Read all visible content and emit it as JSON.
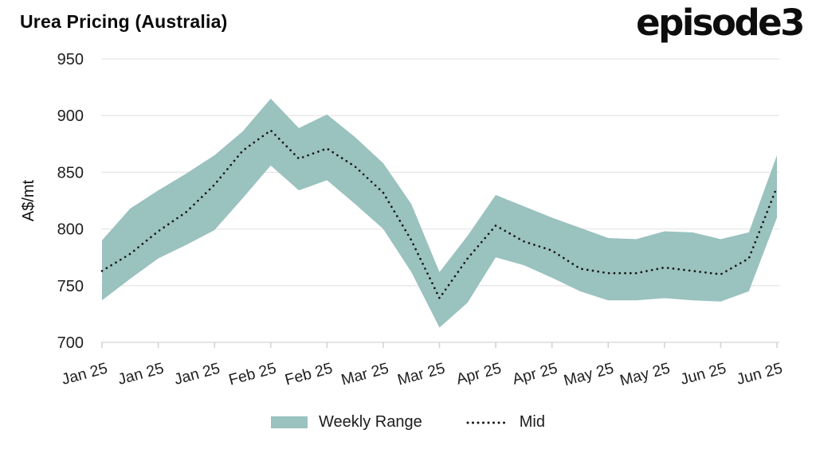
{
  "header": {
    "title": "Urea Pricing (Australia)",
    "logo": "episode3"
  },
  "legend": {
    "range_label": "Weekly Range",
    "mid_label": "Mid"
  },
  "colors": {
    "band": "#9ac2bf",
    "mid_line": "#141414",
    "gridline": "#e7e7e7",
    "axis_line": "#d4d4d4",
    "tick_text": "#1f1f1f",
    "title_text": "#0a0a0a"
  },
  "chart_data": {
    "type": "area",
    "title": "Urea Pricing (Australia)",
    "xlabel": "",
    "ylabel": "A$/mt",
    "ylim": [
      700,
      950
    ],
    "yticks": [
      700,
      750,
      800,
      850,
      900,
      950
    ],
    "grid": true,
    "legend_position": "bottom",
    "x_tick_labels": [
      "Jan 25",
      "Jan 25",
      "Jan 25",
      "Feb 25",
      "Feb 25",
      "Mar 25",
      "Mar 25",
      "Apr 25",
      "Apr 25",
      "May 25",
      "May 25",
      "Jun 25",
      "Jun 25"
    ],
    "x_tick_every_n_points": 2,
    "series": [
      {
        "name": "Weekly Range",
        "type": "band",
        "low": [
          737,
          756,
          774,
          786,
          799,
          827,
          856,
          834,
          843,
          822,
          800,
          762,
          713,
          735,
          775,
          768,
          757,
          745,
          737,
          737,
          739,
          737,
          736,
          745,
          810
        ],
        "high": [
          790,
          818,
          834,
          849,
          865,
          886,
          915,
          889,
          901,
          881,
          858,
          822,
          762,
          794,
          830,
          820,
          810,
          801,
          792,
          791,
          798,
          797,
          791,
          797,
          865
        ]
      },
      {
        "name": "Mid",
        "type": "dotted-line",
        "values": [
          763,
          778,
          798,
          815,
          839,
          869,
          887,
          862,
          871,
          855,
          832,
          790,
          739,
          774,
          803,
          789,
          781,
          765,
          761,
          761,
          766,
          763,
          760,
          774,
          837
        ]
      }
    ]
  }
}
